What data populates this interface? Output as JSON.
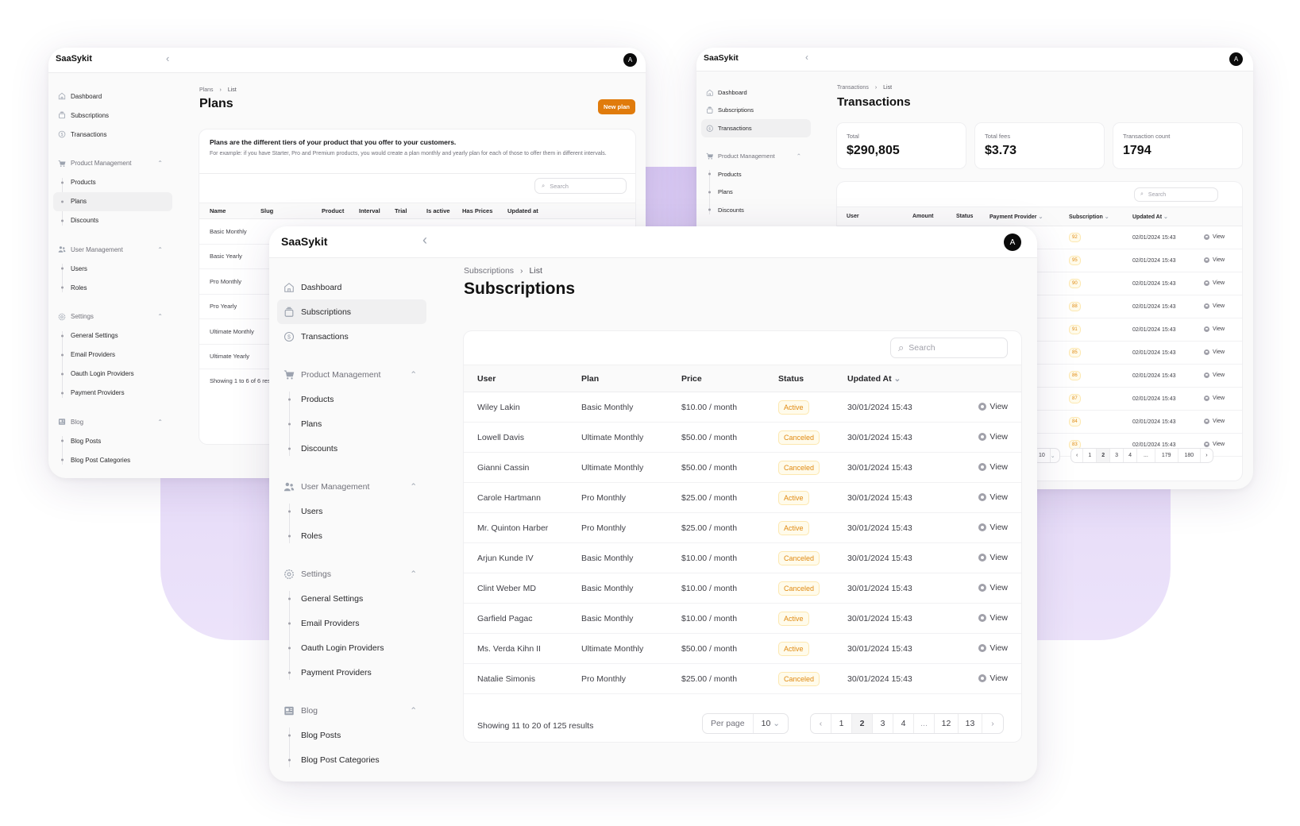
{
  "colors": {
    "accent": "#e07b0c",
    "badge_text": "#e08a12",
    "badge_bg": "#fffbeb",
    "backdrop": "#d8c8f3"
  },
  "plans_window": {
    "brand": "SaaSykit",
    "avatar": "A",
    "sidebar": [
      {
        "label": "Dashboard",
        "icon": "home-icon"
      },
      {
        "label": "Subscriptions",
        "icon": "subscriptions-icon"
      },
      {
        "label": "Transactions",
        "icon": "dollar-icon"
      },
      {
        "label": "Product Management",
        "icon": "cart-icon",
        "children": [
          {
            "label": "Products"
          },
          {
            "label": "Plans",
            "active": true
          },
          {
            "label": "Discounts"
          }
        ]
      },
      {
        "label": "User Management",
        "icon": "users-icon",
        "children": [
          {
            "label": "Users"
          },
          {
            "label": "Roles"
          }
        ]
      },
      {
        "label": "Settings",
        "icon": "gear-icon",
        "children": [
          {
            "label": "General Settings"
          },
          {
            "label": "Email Providers"
          },
          {
            "label": "Oauth Login Providers"
          },
          {
            "label": "Payment Providers"
          }
        ]
      },
      {
        "label": "Blog",
        "icon": "blog-icon",
        "children": [
          {
            "label": "Blog Posts"
          },
          {
            "label": "Blog Post Categories"
          }
        ]
      }
    ],
    "breadcrumb": [
      "Plans",
      "List"
    ],
    "title": "Plans",
    "new_button": "New plan",
    "description_title": "Plans are the different tiers of your product that you offer to your customers.",
    "description_text": "For example: if you have Starter, Pro and Premium products, you would create a plan monthly and yearly plan for each of those to offer them in different intervals.",
    "search_placeholder": "Search",
    "columns": [
      "Name",
      "Slug",
      "Product",
      "Interval",
      "Trial",
      "Is active",
      "Has Prices",
      "Updated at"
    ],
    "rows": [
      "Basic Monthly",
      "Basic Yearly",
      "Pro Monthly",
      "Pro Yearly",
      "Ultimate Monthly",
      "Ultimate Yearly"
    ],
    "footer": "Showing 1 to 6 of 6 results"
  },
  "transactions_window": {
    "brand": "SaaSykit",
    "avatar": "A",
    "sidebar": [
      {
        "label": "Dashboard",
        "icon": "home-icon"
      },
      {
        "label": "Subscriptions",
        "icon": "subscriptions-icon"
      },
      {
        "label": "Transactions",
        "icon": "dollar-icon",
        "active": true
      },
      {
        "label": "Product Management",
        "icon": "cart-icon",
        "children": [
          {
            "label": "Products"
          },
          {
            "label": "Plans"
          },
          {
            "label": "Discounts"
          }
        ]
      }
    ],
    "breadcrumb": [
      "Transactions",
      "List"
    ],
    "title": "Transactions",
    "stats": [
      {
        "label": "Total",
        "value": "$290,805"
      },
      {
        "label": "Total fees",
        "value": "$3.73"
      },
      {
        "label": "Transaction count",
        "value": "1794"
      }
    ],
    "search_placeholder": "Search",
    "columns": [
      "User",
      "Amount",
      "Status",
      "Payment Provider",
      "Subscription",
      "Updated At"
    ],
    "rows": [
      {
        "subscription": "92",
        "updated": "02/01/2024 15:43",
        "action": "View"
      },
      {
        "subscription": "95",
        "updated": "02/01/2024 15:43",
        "action": "View"
      },
      {
        "subscription": "90",
        "updated": "02/01/2024 15:43",
        "action": "View"
      },
      {
        "subscription": "88",
        "updated": "02/01/2024 15:43",
        "action": "View"
      },
      {
        "subscription": "91",
        "updated": "02/01/2024 15:43",
        "action": "View"
      },
      {
        "subscription": "85",
        "updated": "02/01/2024 15:43",
        "action": "View"
      },
      {
        "subscription": "86",
        "updated": "02/01/2024 15:43",
        "action": "View"
      },
      {
        "subscription": "87",
        "updated": "02/01/2024 15:43",
        "action": "View"
      },
      {
        "subscription": "84",
        "updated": "02/01/2024 15:43",
        "action": "View"
      },
      {
        "subscription": "83",
        "updated": "02/01/2024 15:43",
        "action": "View"
      }
    ],
    "per_page": "10",
    "pages": [
      "‹",
      "1",
      "2",
      "3",
      "4",
      "...",
      "179",
      "180",
      "›"
    ],
    "current_page": "2"
  },
  "subscriptions_window": {
    "brand": "SaaSykit",
    "avatar": "A",
    "sidebar": [
      {
        "label": "Dashboard",
        "icon": "home-icon"
      },
      {
        "label": "Subscriptions",
        "icon": "subscriptions-icon",
        "active": true
      },
      {
        "label": "Transactions",
        "icon": "dollar-icon"
      },
      {
        "label": "Product Management",
        "icon": "cart-icon",
        "children": [
          {
            "label": "Products"
          },
          {
            "label": "Plans"
          },
          {
            "label": "Discounts"
          }
        ]
      },
      {
        "label": "User Management",
        "icon": "users-icon",
        "children": [
          {
            "label": "Users"
          },
          {
            "label": "Roles"
          }
        ]
      },
      {
        "label": "Settings",
        "icon": "gear-icon",
        "children": [
          {
            "label": "General Settings"
          },
          {
            "label": "Email Providers"
          },
          {
            "label": "Oauth Login Providers"
          },
          {
            "label": "Payment Providers"
          }
        ]
      },
      {
        "label": "Blog",
        "icon": "blog-icon",
        "children": [
          {
            "label": "Blog Posts"
          },
          {
            "label": "Blog Post Categories"
          }
        ]
      }
    ],
    "breadcrumb": [
      "Subscriptions",
      "List"
    ],
    "title": "Subscriptions",
    "search_placeholder": "Search",
    "columns": [
      "User",
      "Plan",
      "Price",
      "Status",
      "Updated At",
      ""
    ],
    "rows": [
      {
        "user": "Wiley Lakin",
        "plan": "Basic Monthly",
        "price": "$10.00 / month",
        "status": "Active",
        "updated": "30/01/2024 15:43",
        "action": "View"
      },
      {
        "user": "Lowell Davis",
        "plan": "Ultimate Monthly",
        "price": "$50.00 / month",
        "status": "Canceled",
        "updated": "30/01/2024 15:43",
        "action": "View"
      },
      {
        "user": "Gianni Cassin",
        "plan": "Ultimate Monthly",
        "price": "$50.00 / month",
        "status": "Canceled",
        "updated": "30/01/2024 15:43",
        "action": "View"
      },
      {
        "user": "Carole Hartmann",
        "plan": "Pro Monthly",
        "price": "$25.00 / month",
        "status": "Active",
        "updated": "30/01/2024 15:43",
        "action": "View"
      },
      {
        "user": "Mr. Quinton Harber",
        "plan": "Pro Monthly",
        "price": "$25.00 / month",
        "status": "Active",
        "updated": "30/01/2024 15:43",
        "action": "View"
      },
      {
        "user": "Arjun Kunde IV",
        "plan": "Basic Monthly",
        "price": "$10.00 / month",
        "status": "Canceled",
        "updated": "30/01/2024 15:43",
        "action": "View"
      },
      {
        "user": "Clint Weber MD",
        "plan": "Basic Monthly",
        "price": "$10.00 / month",
        "status": "Canceled",
        "updated": "30/01/2024 15:43",
        "action": "View"
      },
      {
        "user": "Garfield Pagac",
        "plan": "Basic Monthly",
        "price": "$10.00 / month",
        "status": "Active",
        "updated": "30/01/2024 15:43",
        "action": "View"
      },
      {
        "user": "Ms. Verda Kihn II",
        "plan": "Ultimate Monthly",
        "price": "$50.00 / month",
        "status": "Active",
        "updated": "30/01/2024 15:43",
        "action": "View"
      },
      {
        "user": "Natalie Simonis",
        "plan": "Pro Monthly",
        "price": "$25.00 / month",
        "status": "Canceled",
        "updated": "30/01/2024 15:43",
        "action": "View"
      }
    ],
    "footer": "Showing 11 to 20 of 125 results",
    "per_page_label": "Per page",
    "per_page": "10",
    "pages": [
      "‹",
      "1",
      "2",
      "3",
      "4",
      "...",
      "12",
      "13",
      "›"
    ],
    "current_page": "2"
  }
}
